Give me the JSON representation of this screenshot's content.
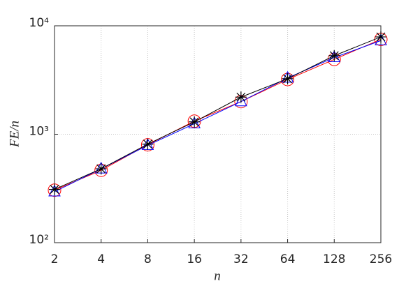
{
  "chart_data": {
    "type": "line",
    "xlabel": "n",
    "ylabel": "FE/n",
    "x": [
      2,
      4,
      8,
      16,
      32,
      64,
      128,
      256
    ],
    "series": [
      {
        "color": "#ff0000",
        "marker": "circle",
        "values": [
          305,
          465,
          800,
          1320,
          2000,
          3200,
          4900,
          7500
        ]
      },
      {
        "color": "#0000ff",
        "marker": "triangle",
        "values": [
          295,
          480,
          790,
          1250,
          2000,
          3300,
          5100,
          7300
        ]
      },
      {
        "color": "#000000",
        "marker": "asterisk",
        "values": [
          310,
          480,
          810,
          1300,
          2200,
          3250,
          5300,
          7900
        ]
      }
    ],
    "xscale": "log",
    "yscale": "log",
    "xlim": [
      2,
      256
    ],
    "xticks": [
      2,
      4,
      8,
      16,
      32,
      64,
      128,
      256
    ],
    "ylim": [
      100,
      10000
    ],
    "yticks": [
      {
        "value": 100,
        "label": "10²"
      },
      {
        "value": 1000,
        "label": "10³"
      },
      {
        "value": 10000,
        "label": "10⁴"
      }
    ],
    "grid": true
  }
}
